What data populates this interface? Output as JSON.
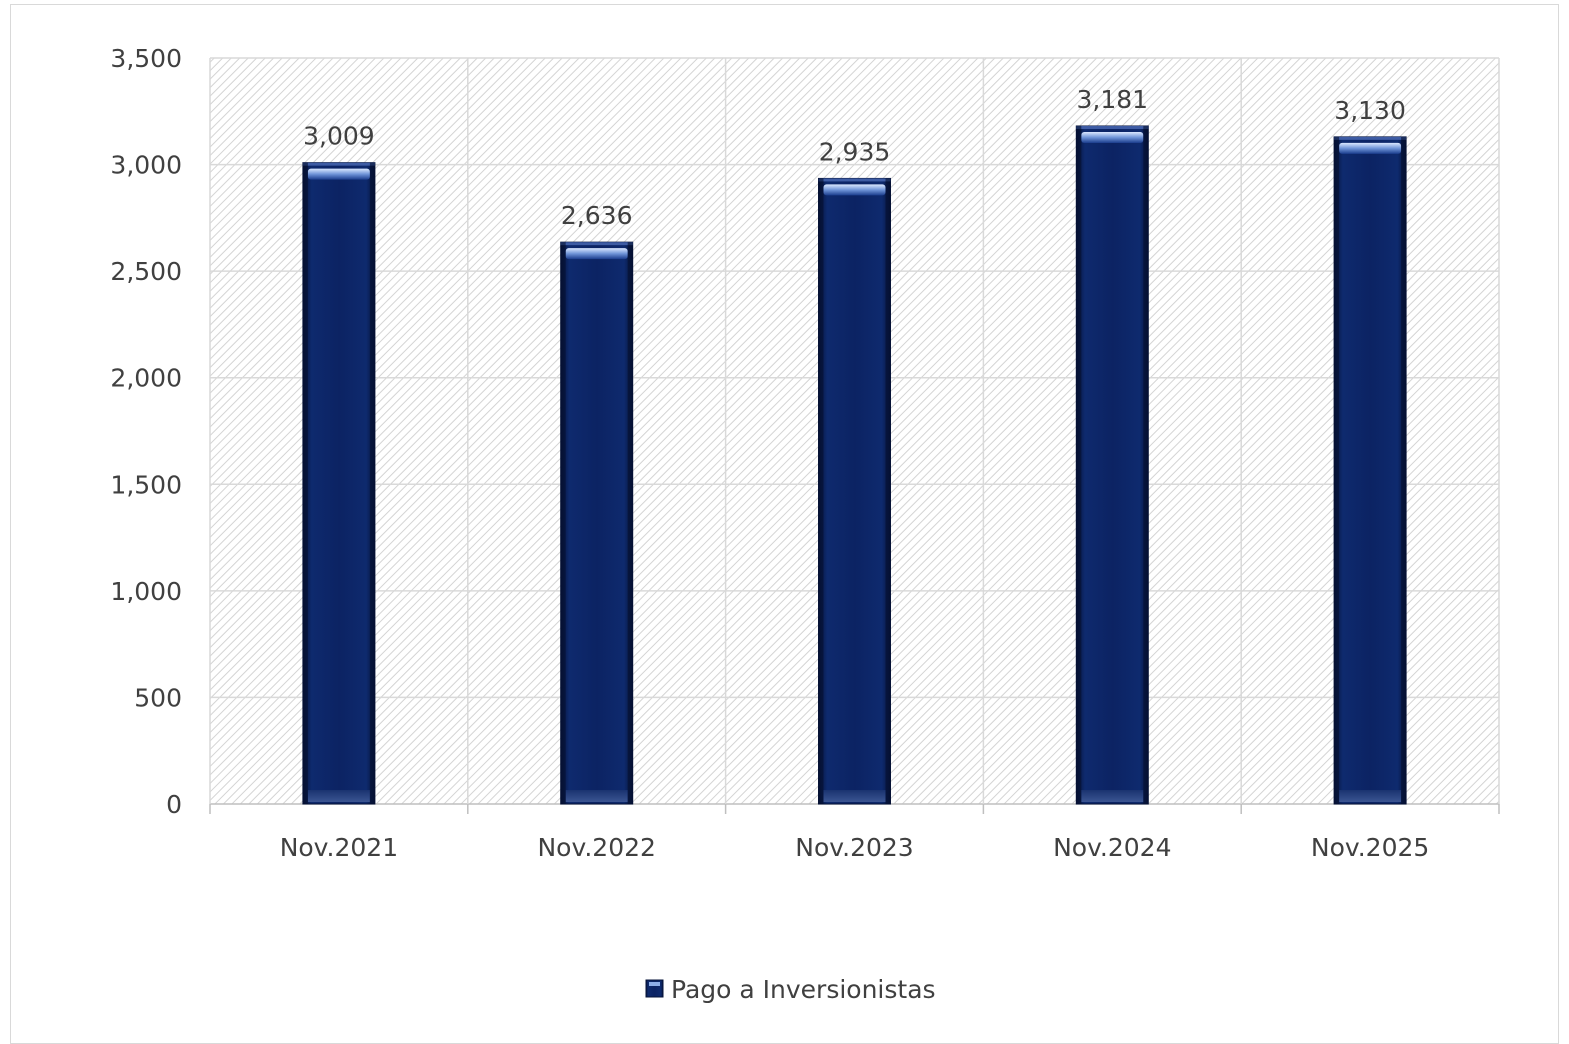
{
  "chart_data": {
    "type": "bar",
    "title": "",
    "xlabel": "",
    "ylabel": "",
    "categories": [
      "Nov.2021",
      "Nov.2022",
      "Nov.2023",
      "Nov.2024",
      "Nov.2025"
    ],
    "series": [
      {
        "name": "Pago a Inversionistas",
        "values": [
          3009,
          2636,
          2935,
          3181,
          3130
        ],
        "labels": [
          "3,009",
          "2,636",
          "2,935",
          "3,181",
          "3,130"
        ],
        "color": "#0c2363"
      }
    ],
    "ylim": [
      0,
      3500
    ],
    "yticks": [
      0,
      500,
      1000,
      1500,
      2000,
      2500,
      3000,
      3500
    ],
    "ytick_labels": [
      "0",
      "500",
      "1,000",
      "1,500",
      "2,000",
      "2,500",
      "3,000",
      "3,500"
    ],
    "grid": true,
    "plot_background": "diagonal-hatch",
    "legend_position": "bottom"
  }
}
